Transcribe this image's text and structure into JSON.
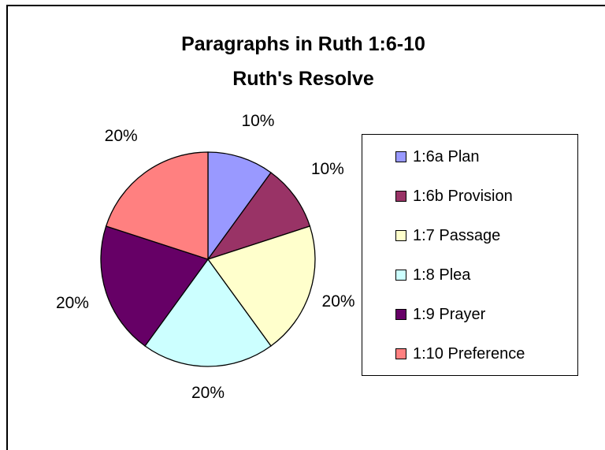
{
  "chart_data": {
    "type": "pie",
    "title": "Paragraphs in Ruth 1:6-10",
    "subtitle": "Ruth's Resolve",
    "categories": [
      "1:6a Plan",
      "1:6b Provision",
      "1:7 Passage",
      "1:8 Plea",
      "1:9 Prayer",
      "1:10 Preference"
    ],
    "values": [
      10,
      10,
      20,
      20,
      20,
      20
    ],
    "labels": [
      "10%",
      "10%",
      "20%",
      "20%",
      "20%",
      "20%"
    ],
    "colors": [
      "#9999ff",
      "#993366",
      "#ffffcc",
      "#ccffff",
      "#660066",
      "#ff8080"
    ],
    "legend_position": "right"
  }
}
